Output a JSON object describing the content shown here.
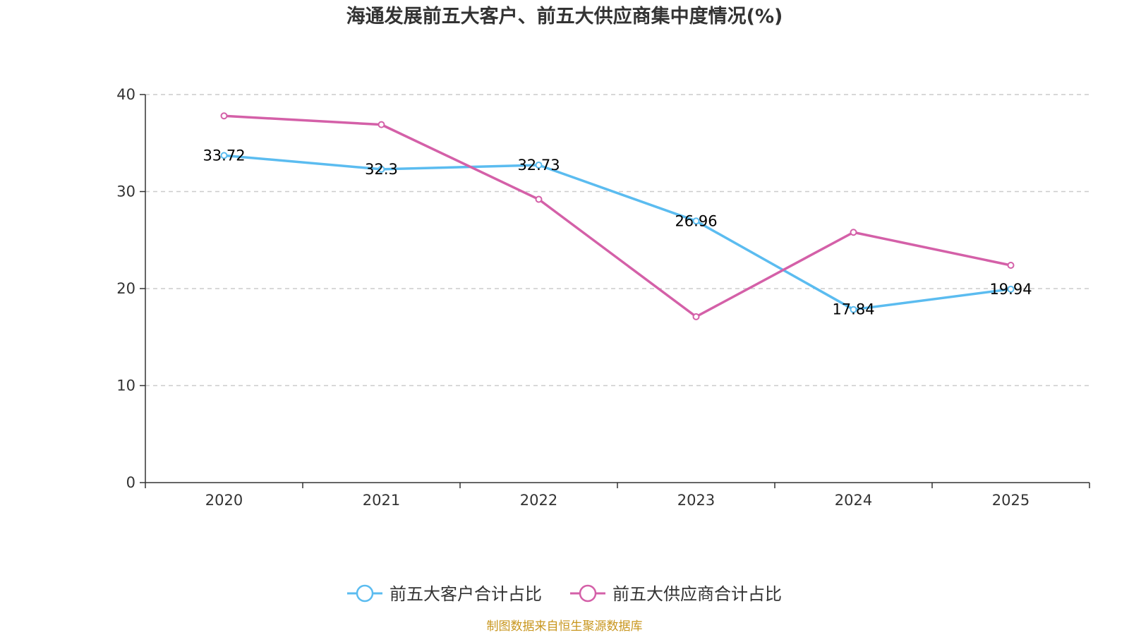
{
  "chart_data": {
    "type": "line",
    "title": "海通发展前五大客户、前五大供应商集中度情况(%)",
    "xlabel": "",
    "ylabel": "",
    "categories": [
      "2020",
      "2021",
      "2022",
      "2023",
      "2024",
      "2025"
    ],
    "ylim": [
      0,
      40
    ],
    "yticks": [
      0,
      10,
      20,
      30,
      40
    ],
    "grid": true,
    "legend_position": "bottom-center",
    "series": [
      {
        "name": "前五大客户合计占比",
        "values": [
          33.72,
          32.3,
          32.73,
          26.96,
          17.84,
          19.94
        ],
        "labels": [
          "33.72",
          "32.3",
          "32.73",
          "26.96",
          "17.84",
          "19.94"
        ],
        "show_labels": true,
        "color": "#5bbcf0"
      },
      {
        "name": "前五大供应商合计占比",
        "values": [
          37.8,
          36.9,
          29.2,
          17.1,
          25.8,
          22.4
        ],
        "show_labels": false,
        "color": "#d460a8"
      }
    ],
    "source": "制图数据来自恒生聚源数据库",
    "source_color": "#c8961e",
    "axis_color": "#333333",
    "grid_color": "#cccccc"
  }
}
